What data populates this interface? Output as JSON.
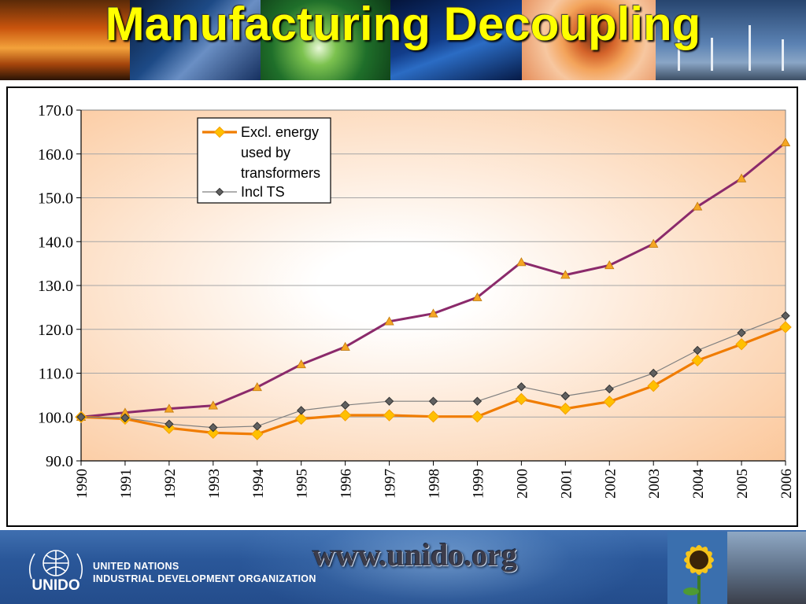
{
  "header": {
    "title": "Manufacturing Decoupling"
  },
  "chart_data": {
    "type": "line",
    "title": "",
    "xlabel": "",
    "ylabel": "",
    "ylim": [
      90,
      170
    ],
    "y_ticks": [
      "90.0",
      "100.0",
      "110.0",
      "120.0",
      "130.0",
      "140.0",
      "150.0",
      "160.0",
      "170.0"
    ],
    "categories": [
      "1990",
      "1991",
      "1992",
      "1993",
      "1994",
      "1995",
      "1996",
      "1997",
      "1998",
      "1999",
      "2000",
      "2001",
      "2002",
      "2003",
      "2004",
      "2005",
      "2006"
    ],
    "grid": "horizontal",
    "legend_position": "top-left",
    "series": [
      {
        "name": "",
        "color": "#8b2a6b",
        "marker": "triangle",
        "marker_color": "#f5a623",
        "values": [
          100.0,
          101.0,
          101.9,
          102.6,
          106.8,
          112.0,
          116.0,
          121.8,
          123.6,
          127.3,
          135.3,
          132.4,
          134.6,
          139.5,
          148.0,
          154.4,
          162.6
        ]
      },
      {
        "name": "Excl. energy used by transformers",
        "color": "#f07c00",
        "marker": "diamond",
        "marker_color": "#ffc000",
        "values": [
          100.0,
          99.6,
          97.5,
          96.4,
          96.1,
          99.6,
          100.4,
          100.4,
          100.1,
          100.1,
          104.1,
          101.9,
          103.5,
          107.1,
          112.9,
          116.6,
          120.5
        ]
      },
      {
        "name": "Incl TS",
        "color": "#7f7f7f",
        "marker": "diamond",
        "marker_color": "#606060",
        "values": [
          100.0,
          99.8,
          98.4,
          97.6,
          97.9,
          101.5,
          102.7,
          103.6,
          103.6,
          103.6,
          106.9,
          104.8,
          106.4,
          110.0,
          115.2,
          119.2,
          123.1
        ]
      }
    ],
    "legend": {
      "entries": [
        {
          "lines": [
            "Excl. energy",
            "used by",
            "transformers"
          ]
        },
        {
          "lines": [
            "Incl TS"
          ]
        }
      ]
    },
    "background_gradient": [
      "#fbc79a",
      "#ffffff"
    ]
  },
  "footer": {
    "url": "www.unido.org",
    "logo_text": "UNIDO",
    "org_line1": "UNITED NATIONS",
    "org_line2": "INDUSTRIAL DEVELOPMENT ORGANIZATION"
  }
}
